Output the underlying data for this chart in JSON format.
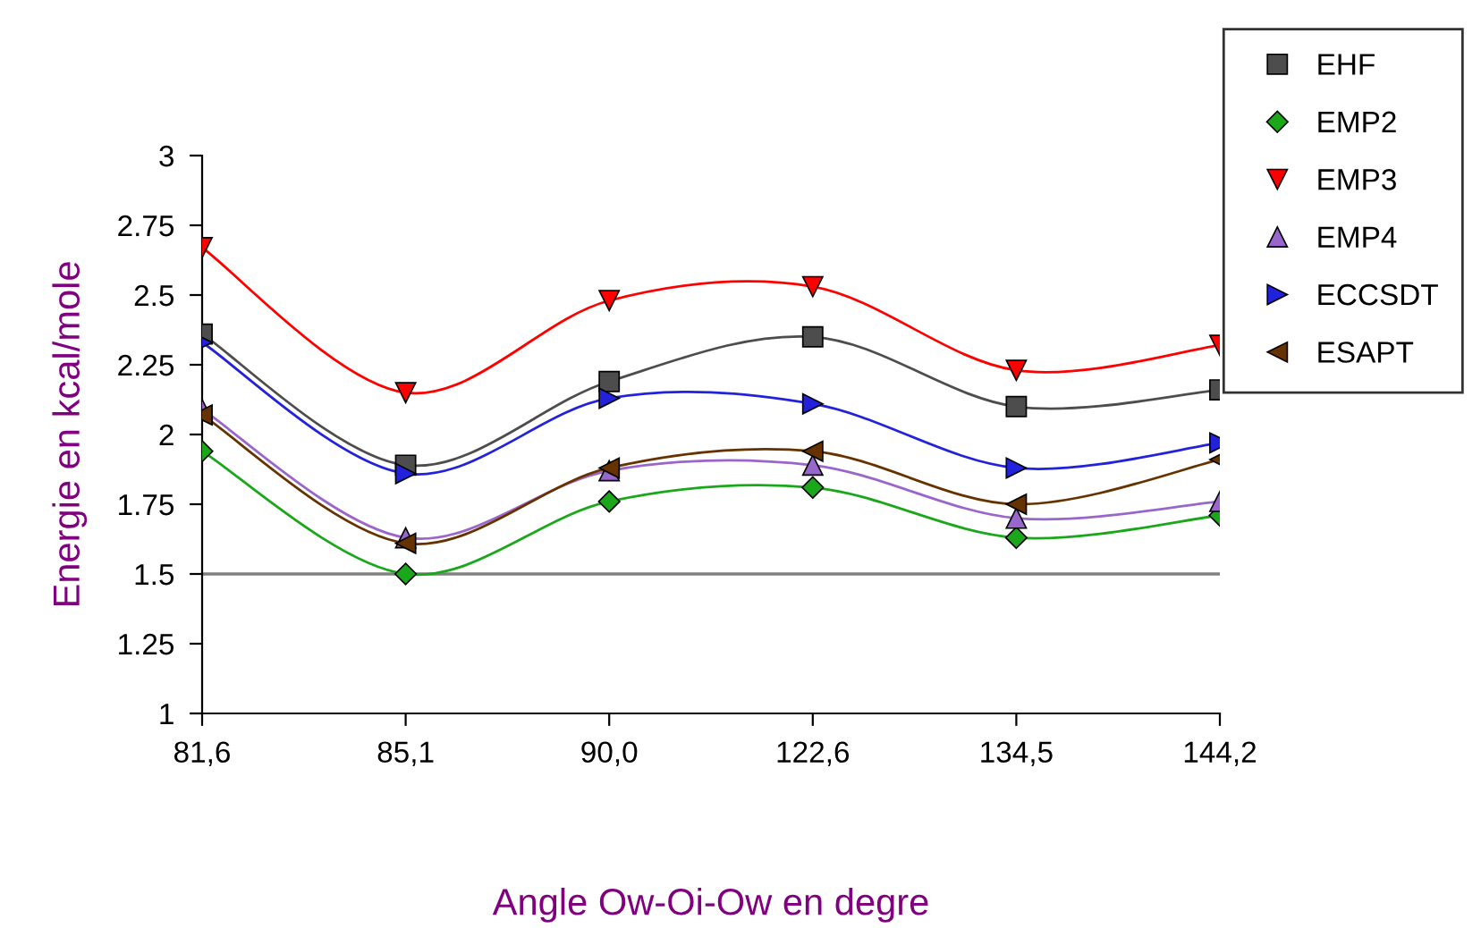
{
  "chart_data": {
    "type": "line",
    "xlabel": "Angle Ow-Oi-Ow en degre",
    "ylabel": "Energie en kcal/mole",
    "categories": [
      "81,6",
      "85,1",
      "90,0",
      "122,6",
      "134,5",
      "144,2"
    ],
    "ylim": [
      1,
      3
    ],
    "yticks": [
      1,
      1.25,
      1.5,
      1.75,
      2,
      2.25,
      2.5,
      2.75,
      3
    ],
    "grid": false,
    "legend": "top right",
    "ref_lines": [
      {
        "axis": "y",
        "value": 1.5,
        "color": "#808080"
      }
    ],
    "series": [
      {
        "name": "EHF",
        "color": "#4d4d4d",
        "marker": "square",
        "values": [
          2.36,
          1.89,
          2.19,
          2.35,
          2.1,
          2.16
        ]
      },
      {
        "name": "EMP2",
        "color": "#1aa81a",
        "marker": "diamond",
        "values": [
          1.94,
          1.5,
          1.76,
          1.81,
          1.63,
          1.71
        ]
      },
      {
        "name": "EMP3",
        "color": "#ff0000",
        "marker": "triangle_down",
        "values": [
          2.67,
          2.15,
          2.48,
          2.53,
          2.23,
          2.32
        ]
      },
      {
        "name": "EMP4",
        "color": "#9966cc",
        "marker": "triangle",
        "values": [
          2.09,
          1.63,
          1.87,
          1.89,
          1.7,
          1.76
        ]
      },
      {
        "name": "ECCSDT",
        "color": "#2222dd",
        "marker": "triangle_right",
        "values": [
          2.33,
          1.86,
          2.13,
          2.11,
          1.88,
          1.97
        ]
      },
      {
        "name": "ESAPT",
        "color": "#663300",
        "marker": "triangle_left",
        "values": [
          2.07,
          1.61,
          1.88,
          1.94,
          1.75,
          1.91
        ]
      }
    ]
  }
}
